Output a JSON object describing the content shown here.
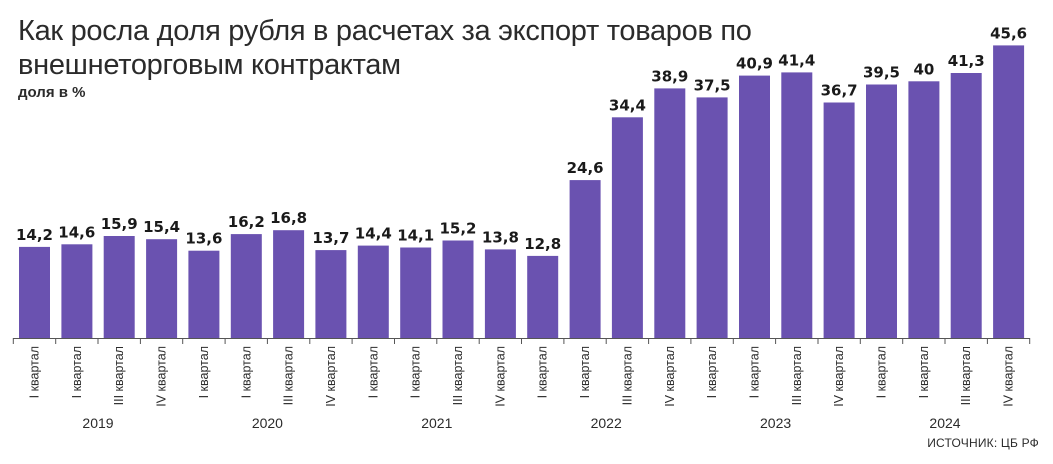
{
  "header": {
    "title": "Как росла доля рубля в расчетах за экспорт товаров по внешнеторговым контрактам",
    "subtitle": "доля в %"
  },
  "source": "ИСТОЧНИК: ЦБ РФ",
  "colors": {
    "bar": "#6a52b0",
    "axis": "#555555"
  },
  "chart_data": {
    "type": "bar",
    "title": "Как росла доля рубля в расчетах за экспорт товаров по внешнеторговым контрактам",
    "ylabel": "доля в %",
    "ylim": [
      0,
      48
    ],
    "grid": false,
    "categories": [
      "I квартал",
      "I квартал",
      "III квартал",
      "IV квартал",
      "I квартал",
      "I квартал",
      "III квартал",
      "IV квартал",
      "I квартал",
      "I квартал",
      "III квартал",
      "IV квартал",
      "I квартал",
      "I квартал",
      "III квартал",
      "IV квартал",
      "I квартал",
      "I квартал",
      "III квартал",
      "IV квартал",
      "I квартал",
      "I квартал",
      "III квартал",
      "IV квартал"
    ],
    "values": [
      14.2,
      14.6,
      15.9,
      15.4,
      13.6,
      16.2,
      16.8,
      13.7,
      14.4,
      14.1,
      15.2,
      13.8,
      12.8,
      24.6,
      34.4,
      38.9,
      37.5,
      40.9,
      41.4,
      36.7,
      39.5,
      40,
      41.3,
      45.6
    ],
    "value_labels": [
      "14,2",
      "14,6",
      "15,9",
      "15,4",
      "13,6",
      "16,2",
      "16,8",
      "13,7",
      "14,4",
      "14,1",
      "15,2",
      "13,8",
      "12,8",
      "24,6",
      "34,4",
      "38,9",
      "37,5",
      "40,9",
      "41,4",
      "36,7",
      "39,5",
      "40",
      "41,3",
      "45,6"
    ],
    "years": [
      "2019",
      "2020",
      "2021",
      "2022",
      "2023",
      "2024"
    ]
  }
}
